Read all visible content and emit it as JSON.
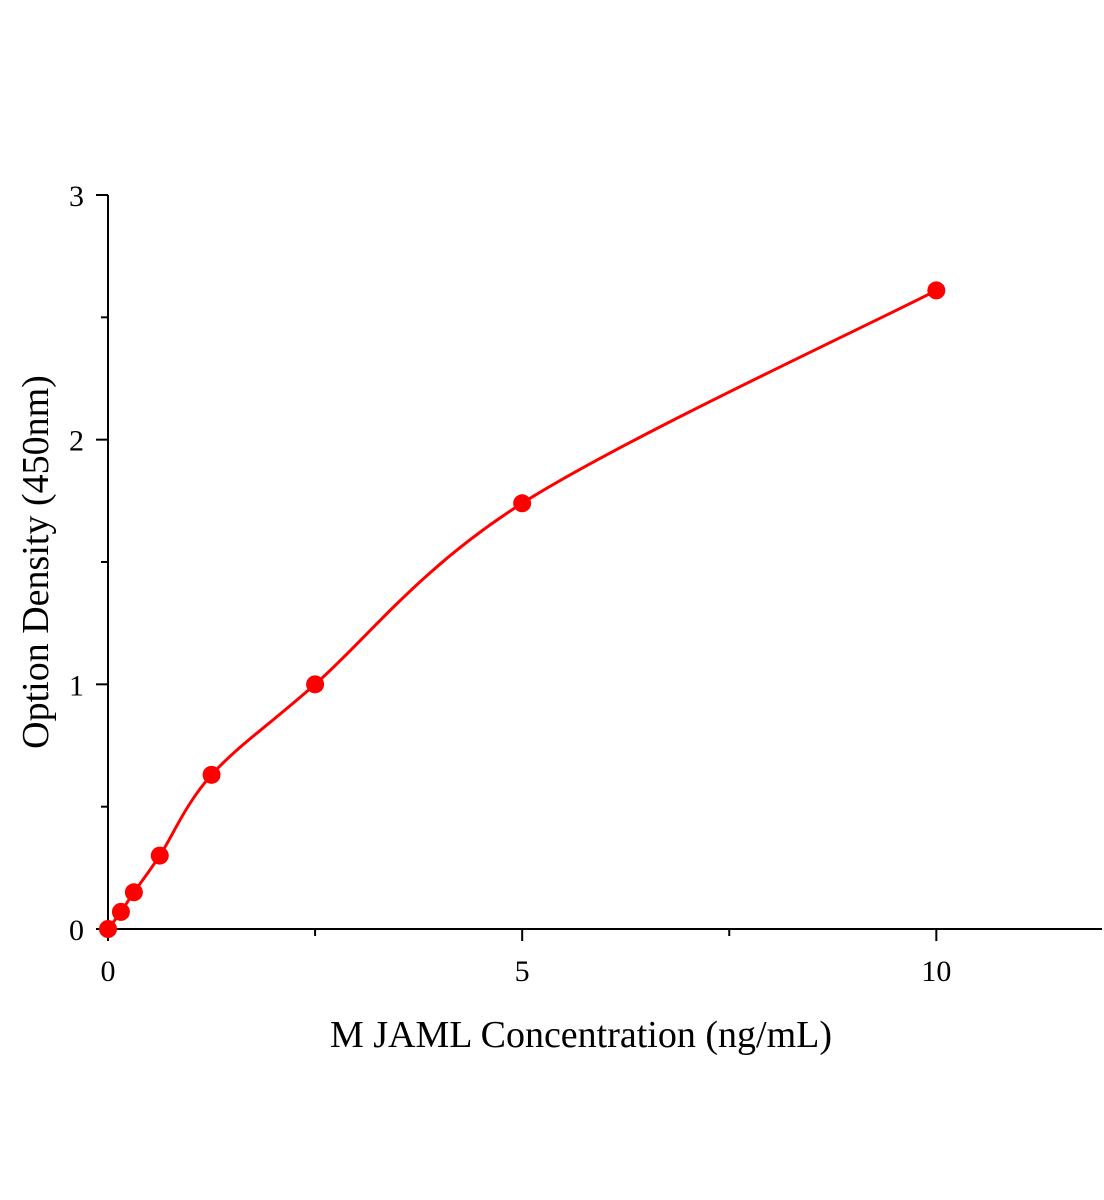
{
  "chart_data": {
    "type": "scatter",
    "title": "",
    "xlabel": "M JAML Concentration (ng/mL)",
    "ylabel": "Option Density (450nm)",
    "xlim": [
      0,
      12
    ],
    "ylim": [
      0,
      3
    ],
    "xticks": [
      0,
      5,
      10
    ],
    "xtick_labels": [
      "0",
      "5",
      "10"
    ],
    "x_minor_ticks": [
      2.5,
      7.5
    ],
    "yticks": [
      0,
      1,
      2,
      3
    ],
    "ytick_labels": [
      "0",
      "1",
      "2",
      "3"
    ],
    "y_minor_ticks": [
      0.5,
      1.5,
      2.5
    ],
    "grid": false,
    "series": [
      {
        "x": [
          0,
          0.156,
          0.3125,
          0.625,
          1.25,
          2.5,
          5,
          10
        ],
        "y": [
          0,
          0.07,
          0.15,
          0.3,
          0.63,
          1.0,
          1.74,
          2.61
        ],
        "color": "#ff0000",
        "marker": "circle",
        "fit_line": true
      }
    ]
  }
}
